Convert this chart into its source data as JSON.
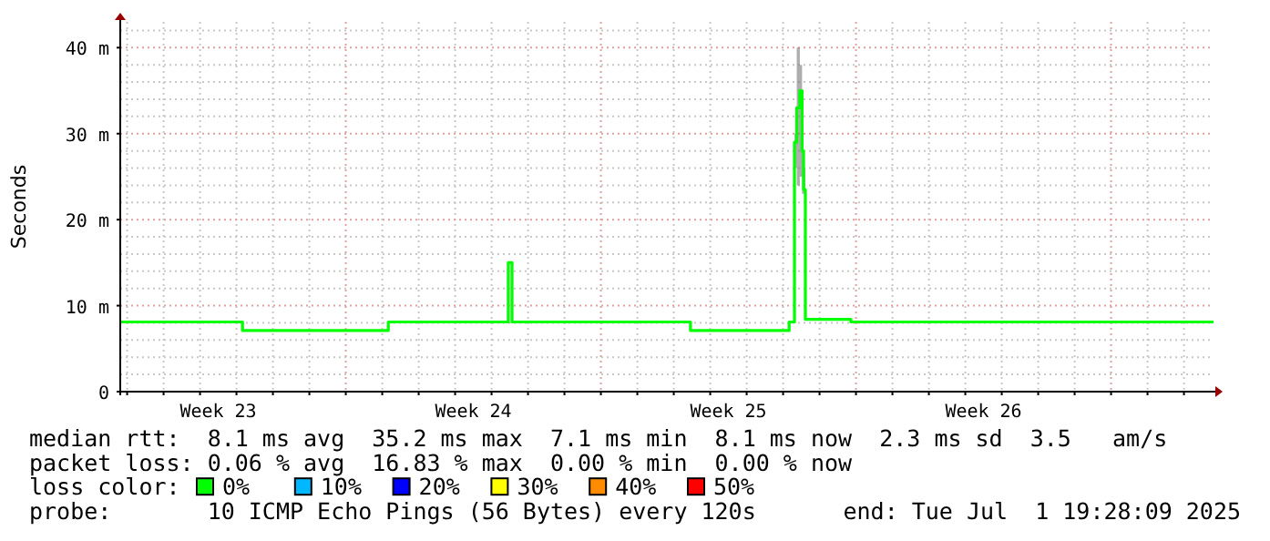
{
  "chart_data": {
    "type": "step",
    "ylabel": "Seconds",
    "x": [
      "2025-06-01T19:28",
      "2025-06-05T04:00",
      "2025-06-09T04:00",
      "2025-06-12T11:00",
      "2025-06-12T13:30",
      "2025-06-17T11:00",
      "2025-06-20T04:00",
      "2025-06-20T07:30",
      "2025-06-20T09:00",
      "2025-06-20T11:00",
      "2025-06-20T12:30",
      "2025-06-20T13:30",
      "2025-06-20T14:40",
      "2025-06-21T20:40",
      "2025-07-01T19:28"
    ],
    "series": [
      {
        "color": "#00ff00",
        "values": [
          8.1,
          7.1,
          8.1,
          15,
          8.1,
          7.1,
          8.1,
          29,
          33,
          35,
          28,
          23.5,
          8.4,
          8.1,
          8.1
        ],
        "lower": [
          8.1,
          7.1,
          8.1,
          15,
          8.1,
          7.1,
          8.1,
          26,
          24,
          25,
          23,
          23,
          8.4,
          8.1,
          8.1
        ],
        "upper": [
          8.1,
          7.1,
          8.1,
          15,
          8.1,
          7.1,
          8.1,
          30,
          40,
          38,
          33,
          26,
          8.4,
          8.1,
          8.1
        ]
      }
    ],
    "xlim": [
      "2025-06-01T19:28",
      "2025-07-01T19:28"
    ],
    "xticks": [
      {
        "value": "2025-06-04T12:00",
        "label": "Week 23"
      },
      {
        "value": "2025-06-11T12:00",
        "label": "Week 24"
      },
      {
        "value": "2025-06-18T12:00",
        "label": "Week 25"
      },
      {
        "value": "2025-06-25T12:00",
        "label": "Week 26"
      },
      {
        "value": "2025-06-02",
        "label": null
      },
      {
        "value": "2025-06-03",
        "label": null
      },
      {
        "value": "2025-06-04",
        "label": null
      },
      {
        "value": "2025-06-05",
        "label": null
      },
      {
        "value": "2025-06-06",
        "label": null
      },
      {
        "value": "2025-06-07",
        "label": null
      },
      {
        "value": "2025-06-08",
        "label": null
      },
      {
        "value": "2025-06-09",
        "label": null
      },
      {
        "value": "2025-06-10",
        "label": null
      },
      {
        "value": "2025-06-11",
        "label": null
      },
      {
        "value": "2025-06-12",
        "label": null
      },
      {
        "value": "2025-06-13",
        "label": null
      },
      {
        "value": "2025-06-14",
        "label": null
      },
      {
        "value": "2025-06-15",
        "label": null
      },
      {
        "value": "2025-06-16",
        "label": null
      },
      {
        "value": "2025-06-17",
        "label": null
      },
      {
        "value": "2025-06-18",
        "label": null
      },
      {
        "value": "2025-06-19",
        "label": null
      },
      {
        "value": "2025-06-20",
        "label": null
      },
      {
        "value": "2025-06-21",
        "label": null
      },
      {
        "value": "2025-06-22",
        "label": null
      },
      {
        "value": "2025-06-23",
        "label": null
      },
      {
        "value": "2025-06-24",
        "label": null
      },
      {
        "value": "2025-06-25",
        "label": null
      },
      {
        "value": "2025-06-26",
        "label": null
      },
      {
        "value": "2025-06-27",
        "label": null
      },
      {
        "value": "2025-06-28",
        "label": null
      },
      {
        "value": "2025-06-29",
        "label": null
      },
      {
        "value": "2025-06-30",
        "label": null
      },
      {
        "value": "2025-07-01",
        "label": null
      }
    ],
    "ylim": [
      0,
      43
    ],
    "yticks": [
      {
        "value": 0,
        "label": "0"
      },
      {
        "value": 2,
        "label": null
      },
      {
        "value": 4,
        "label": null
      },
      {
        "value": 6,
        "label": null
      },
      {
        "value": 8,
        "label": null
      },
      {
        "value": 10,
        "label": "10 m"
      },
      {
        "value": 12,
        "label": null
      },
      {
        "value": 14,
        "label": null
      },
      {
        "value": 16,
        "label": null
      },
      {
        "value": 18,
        "label": null
      },
      {
        "value": 20,
        "label": "20 m"
      },
      {
        "value": 22,
        "label": null
      },
      {
        "value": 24,
        "label": null
      },
      {
        "value": 26,
        "label": null
      },
      {
        "value": 28,
        "label": null
      },
      {
        "value": 30,
        "label": "30 m"
      },
      {
        "value": 32,
        "label": null
      },
      {
        "value": 34,
        "label": null
      },
      {
        "value": 36,
        "label": null
      },
      {
        "value": 38,
        "label": null
      },
      {
        "value": 40,
        "label": "40 m"
      },
      {
        "value": 42,
        "label": null
      }
    ],
    "grid": true,
    "annotations": [
      "median rtt:  8.1 ms avg  35.2 ms max  7.1 ms min  8.1 ms now  2.3 ms sd  3.5   am/s",
      "packet loss: 0.06 % avg  16.83 % max  0.00 % min  0.00 % now",
      "loss color:",
      "0%",
      "10%",
      "20%",
      "30%",
      "40%",
      "50%",
      "probe:       10 ICMP Echo Pings (56 Bytes) every 120s",
      "end: Tue Jul  1 19:28:09 2025"
    ]
  }
}
